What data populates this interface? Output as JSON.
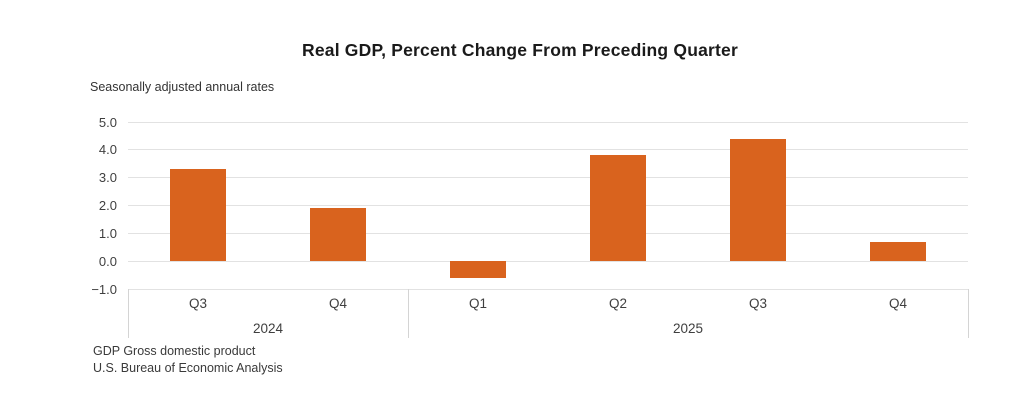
{
  "title": "Real GDP, Percent Change From Preceding Quarter",
  "subtitle": "Seasonally adjusted annual rates",
  "footer": {
    "line1": "GDP Gross domestic product",
    "line2": "U.S. Bureau of Economic Analysis"
  },
  "chart_data": {
    "type": "bar",
    "title": "Real GDP, Percent Change From Preceding Quarter",
    "subtitle": "Seasonally adjusted annual rates",
    "categories": [
      "Q3",
      "Q4",
      "Q1",
      "Q2",
      "Q3",
      "Q4"
    ],
    "group_labels": [
      {
        "label": "2024",
        "span": 2
      },
      {
        "label": "2025",
        "span": 4
      }
    ],
    "values": [
      3.3,
      1.9,
      -0.6,
      3.8,
      4.4,
      0.7
    ],
    "ylim": [
      -1.0,
      5.0
    ],
    "ytick_step": 1.0,
    "ytick_labels": [
      "5.0",
      "4.0",
      "3.0",
      "2.0",
      "1.0",
      "0.0",
      "−1.0"
    ],
    "xlabel": "",
    "ylabel": "",
    "grid": true,
    "legend": "none",
    "bar_color": "#D9631E",
    "gridline_color": "#E2E2E2",
    "text_color": "#3F3F3F"
  }
}
